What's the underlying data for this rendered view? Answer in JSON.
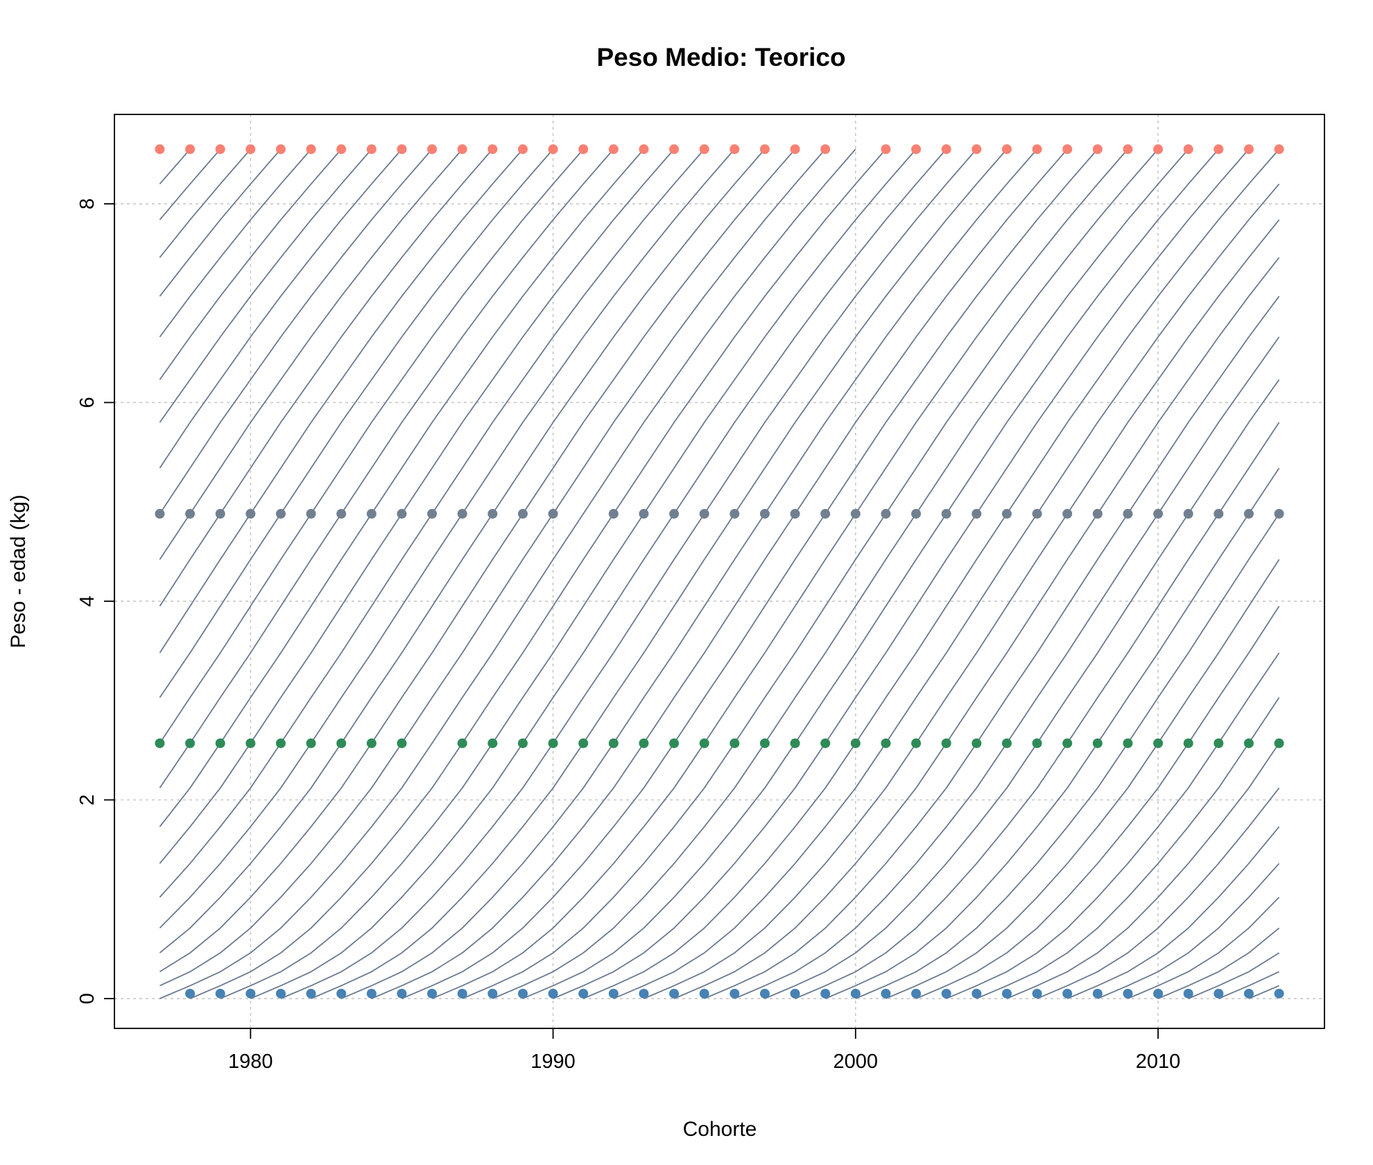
{
  "chart_data": {
    "type": "line",
    "title": "Peso Medio: Teorico",
    "xlabel": "Cohorte",
    "ylabel": "Peso - edad (kg)",
    "xlim": [
      1975.5,
      2015.5
    ],
    "ylim": [
      -0.3,
      8.9
    ],
    "x_ticks": [
      1980,
      1990,
      2000,
      2010
    ],
    "y_ticks": [
      0,
      2,
      4,
      6,
      8
    ],
    "grid": true,
    "line_color": "#6b7a8f",
    "cohort_x": [
      1977,
      1978,
      1979,
      1980,
      1981,
      1982,
      1983,
      1984,
      1985,
      1986,
      1987,
      1988,
      1989,
      1990,
      1991,
      1992,
      1993,
      1994,
      1995,
      1996,
      1997,
      1998,
      1999,
      2000,
      2001,
      2002,
      2003,
      2004,
      2005,
      2006,
      2007,
      2008,
      2009,
      2010,
      2011,
      2012,
      2013,
      2014
    ],
    "series": [
      {
        "values": [
          0.0,
          0.13,
          0.27,
          0.46,
          0.71,
          1.02,
          1.36,
          1.73,
          2.12,
          2.57,
          3.03,
          3.48,
          3.95,
          4.42,
          4.88,
          5.34,
          5.8,
          6.23,
          6.66,
          7.07,
          7.46,
          7.84,
          8.2,
          8.55
        ],
        "description": "growth curve template, one kg value per age step"
      }
    ],
    "markers": [
      {
        "color": "#4682b4",
        "y": 0.05,
        "x": [
          1978,
          1979,
          1980,
          1981,
          1982,
          1983,
          1984,
          1985,
          1986,
          1987,
          1988,
          1989,
          1990,
          1991,
          1992,
          1993,
          1994,
          1995,
          1996,
          1997,
          1998,
          1999,
          2000,
          2001,
          2002,
          2003,
          2004,
          2005,
          2006,
          2007,
          2008,
          2009,
          2010,
          2011,
          2012,
          2013,
          2014
        ]
      },
      {
        "color": "#2e8b57",
        "y": 2.57,
        "x": [
          1977,
          1978,
          1979,
          1980,
          1981,
          1982,
          1983,
          1984,
          1985,
          1987,
          1988,
          1989,
          1990,
          1991,
          1992,
          1993,
          1994,
          1995,
          1996,
          1997,
          1998,
          1999,
          2000,
          2001,
          2002,
          2003,
          2004,
          2005,
          2006,
          2007,
          2008,
          2009,
          2010,
          2011,
          2012,
          2013,
          2014
        ]
      },
      {
        "color": "#708090",
        "y": 4.88,
        "x": [
          1977,
          1978,
          1979,
          1980,
          1981,
          1982,
          1983,
          1984,
          1985,
          1986,
          1987,
          1988,
          1989,
          1990,
          1992,
          1993,
          1994,
          1995,
          1996,
          1997,
          1998,
          1999,
          2000,
          2001,
          2002,
          2003,
          2004,
          2005,
          2006,
          2007,
          2008,
          2009,
          2010,
          2011,
          2012,
          2013,
          2014
        ]
      },
      {
        "color": "#fa8072",
        "y": 8.55,
        "x": [
          1977,
          1978,
          1979,
          1980,
          1981,
          1982,
          1983,
          1984,
          1985,
          1986,
          1987,
          1988,
          1989,
          1990,
          1991,
          1992,
          1993,
          1994,
          1995,
          1996,
          1997,
          1998,
          1999,
          2001,
          2002,
          2003,
          2004,
          2005,
          2006,
          2007,
          2008,
          2009,
          2010,
          2011,
          2012,
          2013,
          2014
        ]
      }
    ]
  }
}
